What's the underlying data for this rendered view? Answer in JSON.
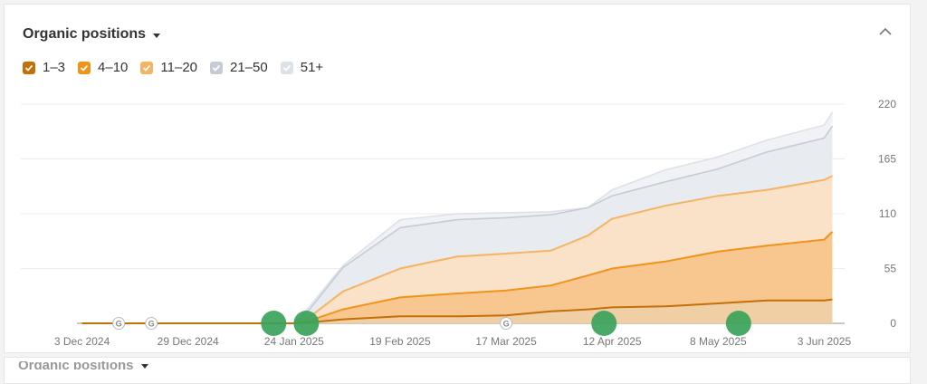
{
  "panel": {
    "title": "Organic positions",
    "collapse_icon": "chevron-up-icon"
  },
  "legend": [
    {
      "label": "1–3",
      "color": "#c46f0a",
      "checked": true
    },
    {
      "label": "4–10",
      "color": "#f0931a",
      "checked": true
    },
    {
      "label": "11–20",
      "color": "#f5b463",
      "checked": true
    },
    {
      "label": "21–50",
      "color": "#c5ccd6",
      "checked": true
    },
    {
      "label": "51+",
      "color": "#dde2e8",
      "checked": true
    }
  ],
  "chart_data": {
    "type": "area",
    "stacked": true,
    "x_ticks": [
      "3 Dec 2024",
      "29 Dec 2024",
      "24 Jan 2025",
      "19 Feb 2025",
      "17 Mar 2025",
      "12 Apr 2025",
      "8 May 2025",
      "3 Jun 2025"
    ],
    "y_ticks": [
      0,
      55,
      110,
      165,
      220
    ],
    "ylim": [
      0,
      220
    ],
    "grid": true,
    "y_axis_side": "right",
    "x": [
      "2024-12-03",
      "2025-01-24",
      "2025-01-28",
      "2025-02-05",
      "2025-02-19",
      "2025-03-05",
      "2025-03-17",
      "2025-03-28",
      "2025-04-06",
      "2025-04-12",
      "2025-04-25",
      "2025-05-08",
      "2025-05-20",
      "2025-06-03",
      "2025-06-05"
    ],
    "series": [
      {
        "name": "1–3",
        "color": "#c46f0a",
        "values": [
          0,
          0,
          1,
          4,
          7,
          7,
          8,
          12,
          14,
          16,
          17,
          20,
          23,
          23,
          24
        ]
      },
      {
        "name": "4–10",
        "color": "#f0931a",
        "values": [
          0,
          0,
          3,
          14,
          26,
          30,
          33,
          38,
          48,
          55,
          62,
          72,
          78,
          84,
          92
        ]
      },
      {
        "name": "11–20",
        "color": "#f5b463",
        "values": [
          0,
          0,
          7,
          32,
          55,
          67,
          70,
          73,
          88,
          105,
          118,
          128,
          134,
          144,
          148
        ]
      },
      {
        "name": "21–50",
        "color": "#c5ccd6",
        "values": [
          0,
          0,
          15,
          56,
          96,
          104,
          106,
          109,
          116,
          128,
          142,
          155,
          172,
          186,
          198
        ]
      },
      {
        "name": "51+",
        "color": "#dde2e8",
        "values": [
          0,
          0,
          18,
          58,
          104,
          110,
          111,
          112,
          116,
          134,
          154,
          167,
          184,
          199,
          212
        ]
      }
    ],
    "markers": [
      {
        "type": "google-update",
        "label": "G",
        "x": "2024-12-12"
      },
      {
        "type": "google-update",
        "label": "G",
        "x": "2024-12-20"
      },
      {
        "type": "google-update",
        "label": "G",
        "x": "2025-03-17"
      },
      {
        "type": "event",
        "color": "#3aa35a",
        "x": "2025-01-19"
      },
      {
        "type": "event",
        "color": "#3aa35a",
        "x": "2025-01-27"
      },
      {
        "type": "event",
        "color": "#3aa35a",
        "x": "2025-04-10"
      },
      {
        "type": "event",
        "color": "#3aa35a",
        "x": "2025-05-13"
      }
    ]
  },
  "next_panel": {
    "title": "Organic positions"
  }
}
